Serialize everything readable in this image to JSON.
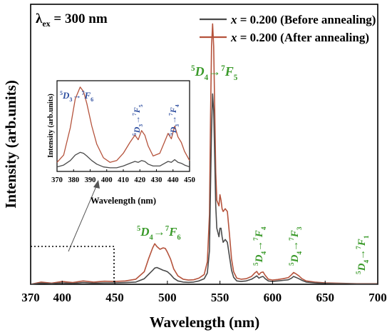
{
  "chart_data": [
    {
      "type": "line",
      "panel": "main",
      "excitation_label": "λex = 300 nm",
      "excitation_symbol": "λ",
      "excitation_subscript": "ex",
      "excitation_value": " = 300 nm",
      "xlabel": "Wavelength (nm)",
      "ylabel": "Intensity (arb.units)",
      "xlim": [
        370,
        700
      ],
      "ylim": [
        0,
        1.0
      ],
      "xticks": [
        370,
        400,
        450,
        500,
        550,
        600,
        650,
        700
      ],
      "yticks_shown": false,
      "legend_position": "top-right",
      "colors": {
        "before": "#4a4a4a",
        "after": "#b5533c",
        "transition_text": "#3a9a2a",
        "inset_transition_text": "#2f4fa0"
      },
      "series": [
        {
          "name": "x = 0.200 (Before annealing)",
          "legend_var": "x",
          "legend_rest": " = 0.200 (Before annealing)",
          "x": [
            370,
            380,
            390,
            400,
            410,
            420,
            430,
            440,
            450,
            460,
            470,
            478,
            482,
            486,
            488,
            490,
            493,
            496,
            498,
            500,
            503,
            506,
            510,
            515,
            520,
            525,
            530,
            535,
            538,
            540,
            541,
            542,
            543,
            544,
            545,
            546,
            547,
            549,
            550,
            551,
            552,
            553,
            555,
            557,
            559,
            561,
            563,
            566,
            570,
            575,
            580,
            583,
            585,
            587,
            589,
            591,
            593,
            596,
            600,
            605,
            610,
            615,
            618,
            620,
            622,
            625,
            628,
            632,
            640,
            650,
            660,
            670,
            680,
            690,
            700
          ],
          "y": [
            0.0,
            0.004,
            0.002,
            0.005,
            0.003,
            0.006,
            0.004,
            0.005,
            0.005,
            0.006,
            0.008,
            0.02,
            0.035,
            0.05,
            0.058,
            0.06,
            0.055,
            0.05,
            0.048,
            0.045,
            0.035,
            0.022,
            0.012,
            0.008,
            0.007,
            0.008,
            0.012,
            0.02,
            0.04,
            0.12,
            0.35,
            0.55,
            0.68,
            0.62,
            0.45,
            0.28,
            0.2,
            0.17,
            0.2,
            0.2,
            0.17,
            0.15,
            0.16,
            0.15,
            0.1,
            0.05,
            0.025,
            0.012,
            0.01,
            0.012,
            0.018,
            0.025,
            0.03,
            0.022,
            0.026,
            0.028,
            0.02,
            0.012,
            0.01,
            0.012,
            0.014,
            0.016,
            0.022,
            0.028,
            0.025,
            0.02,
            0.014,
            0.008,
            0.005,
            0.003,
            0.002,
            0.002,
            0.001,
            0.001,
            0.001
          ]
        },
        {
          "name": "x = 0.200 (After annealing)",
          "legend_var": "x",
          "legend_rest": " = 0.200 (After annealing)",
          "x": [
            370,
            380,
            390,
            400,
            410,
            420,
            430,
            440,
            450,
            460,
            470,
            478,
            482,
            486,
            488,
            490,
            493,
            496,
            498,
            500,
            503,
            506,
            510,
            515,
            520,
            525,
            530,
            535,
            538,
            540,
            541,
            542,
            543,
            544,
            545,
            546,
            547,
            549,
            550,
            551,
            552,
            553,
            555,
            557,
            559,
            561,
            563,
            566,
            570,
            575,
            580,
            583,
            585,
            587,
            589,
            591,
            593,
            596,
            600,
            605,
            610,
            615,
            618,
            620,
            622,
            625,
            628,
            632,
            640,
            650,
            660,
            670,
            680,
            690,
            700
          ],
          "y": [
            0.0,
            0.008,
            0.004,
            0.01,
            0.006,
            0.012,
            0.008,
            0.011,
            0.01,
            0.012,
            0.018,
            0.045,
            0.09,
            0.13,
            0.145,
            0.135,
            0.125,
            0.13,
            0.128,
            0.115,
            0.09,
            0.055,
            0.03,
            0.018,
            0.015,
            0.016,
            0.022,
            0.035,
            0.08,
            0.25,
            0.6,
            0.85,
            0.93,
            0.85,
            0.62,
            0.4,
            0.3,
            0.28,
            0.32,
            0.3,
            0.27,
            0.26,
            0.27,
            0.26,
            0.18,
            0.09,
            0.045,
            0.022,
            0.018,
            0.02,
            0.028,
            0.04,
            0.046,
            0.034,
            0.042,
            0.044,
            0.032,
            0.018,
            0.015,
            0.017,
            0.02,
            0.024,
            0.034,
            0.042,
            0.038,
            0.03,
            0.02,
            0.012,
            0.008,
            0.005,
            0.004,
            0.003,
            0.002,
            0.002,
            0.002
          ]
        }
      ],
      "transitions": [
        {
          "upper_sup": "5",
          "upper": "D",
          "upper_sub": "4",
          "arrow": "→",
          "lower_sup": "7",
          "lower": "F",
          "lower_sub": "5",
          "near_x": 546
        },
        {
          "upper_sup": "5",
          "upper": "D",
          "upper_sub": "4",
          "arrow": "→",
          "lower_sup": "7",
          "lower": "F",
          "lower_sub": "6",
          "near_x": 490
        },
        {
          "upper_sup": "5",
          "upper": "D",
          "upper_sub": "4",
          "arrow": "→",
          "lower_sup": "7",
          "lower": "F",
          "lower_sub": "4",
          "near_x": 587
        },
        {
          "upper_sup": "5",
          "upper": "D",
          "upper_sub": "4",
          "arrow": "→",
          "lower_sup": "7",
          "lower": "F",
          "lower_sub": "3",
          "near_x": 620
        },
        {
          "upper_sup": "5",
          "upper": "D",
          "upper_sub": "4",
          "arrow": "→",
          "lower_sup": "7",
          "lower": "F",
          "lower_sub": "1",
          "near_x": 688
        }
      ],
      "zoom_region": {
        "x": [
          370,
          450
        ]
      }
    },
    {
      "type": "line",
      "panel": "inset",
      "xlabel": "Wavelength (nm)",
      "ylabel": "Intensity (arb.units)",
      "xlim": [
        370,
        450
      ],
      "ylim": [
        0,
        1.0
      ],
      "xticks": [
        370,
        380,
        390,
        400,
        410,
        420,
        430,
        440,
        450
      ],
      "series": [
        {
          "name": "x = 0.200 (Before annealing)",
          "x": [
            370,
            374,
            378,
            381,
            384,
            386,
            388,
            391,
            394,
            398,
            402,
            406,
            410,
            414,
            417,
            419,
            421,
            423,
            425,
            428,
            432,
            435,
            437,
            439,
            441,
            443,
            445,
            447,
            450
          ],
          "y": [
            0.05,
            0.07,
            0.12,
            0.18,
            0.21,
            0.2,
            0.17,
            0.12,
            0.08,
            0.05,
            0.04,
            0.04,
            0.06,
            0.09,
            0.11,
            0.1,
            0.12,
            0.11,
            0.08,
            0.06,
            0.06,
            0.09,
            0.11,
            0.1,
            0.13,
            0.1,
            0.09,
            0.07,
            0.05
          ]
        },
        {
          "name": "x = 0.200 (After annealing)",
          "x": [
            370,
            374,
            378,
            381,
            384,
            386,
            388,
            391,
            394,
            398,
            402,
            406,
            410,
            414,
            417,
            419,
            421,
            423,
            425,
            428,
            432,
            435,
            437,
            439,
            441,
            443,
            445,
            447,
            450
          ],
          "y": [
            0.1,
            0.18,
            0.48,
            0.8,
            0.93,
            0.88,
            0.75,
            0.5,
            0.3,
            0.15,
            0.1,
            0.12,
            0.2,
            0.32,
            0.4,
            0.35,
            0.45,
            0.4,
            0.28,
            0.17,
            0.2,
            0.33,
            0.42,
            0.36,
            0.5,
            0.38,
            0.32,
            0.22,
            0.12
          ]
        }
      ],
      "transitions": [
        {
          "upper_sup": "5",
          "upper": "D",
          "upper_sub": "3",
          "arrow": "→",
          "lower_sup": "7",
          "lower": "F",
          "lower_sub": "6",
          "near_x": 385
        },
        {
          "upper_sup": "5",
          "upper": "D",
          "upper_sub": "3",
          "arrow": "→",
          "lower_sup": "7",
          "lower": "F",
          "lower_sub": "5",
          "near_x": 420
        },
        {
          "upper_sup": "5",
          "upper": "D",
          "upper_sub": "3",
          "arrow": "→",
          "lower_sup": "7",
          "lower": "F",
          "lower_sub": "4",
          "near_x": 440
        }
      ]
    }
  ]
}
